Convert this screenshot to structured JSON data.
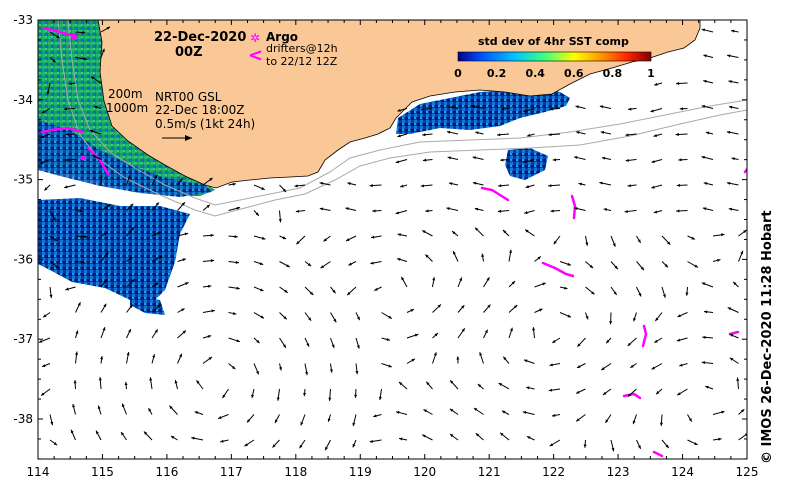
{
  "map": {
    "date": "22-Dec-2020",
    "time": "00Z",
    "legend": {
      "argo_symbol": "✲",
      "argo_label": "Argo",
      "drifter_symbol": "<",
      "drifter_line1": "drifters@12h",
      "drifter_line2": "to 22/12 12Z"
    },
    "contours": {
      "shallow": "200m",
      "deep": "1000m"
    },
    "current_info": {
      "line1": "NRT00 GSL",
      "line2": "22-Dec 18:00Z",
      "line3": "0.5m/s (1kt 24h)"
    },
    "colorbar": {
      "title": "std dev of 4hr SST comp",
      "ticks": [
        "0",
        "0.2",
        "0.4",
        "0.6",
        "0.8",
        "1"
      ],
      "colors": [
        "#00008b",
        "#0050ff",
        "#00c8ff",
        "#40ff80",
        "#ffff00",
        "#ff9000",
        "#ff2000",
        "#7f0000"
      ]
    },
    "x_ticks": [
      "114",
      "115",
      "116",
      "117",
      "118",
      "119",
      "120",
      "121",
      "122",
      "123",
      "124",
      "125"
    ],
    "y_ticks": [
      "-33",
      "-34",
      "-35",
      "-36",
      "-37",
      "-38"
    ],
    "credit": "© IMOS 26-Dec-2020 11:28 Hobart",
    "colors": {
      "land": "#f9c896",
      "argo": "#ff00ff",
      "drifter": "#ff00ff",
      "bathymetry": "#aaaaaa"
    }
  }
}
